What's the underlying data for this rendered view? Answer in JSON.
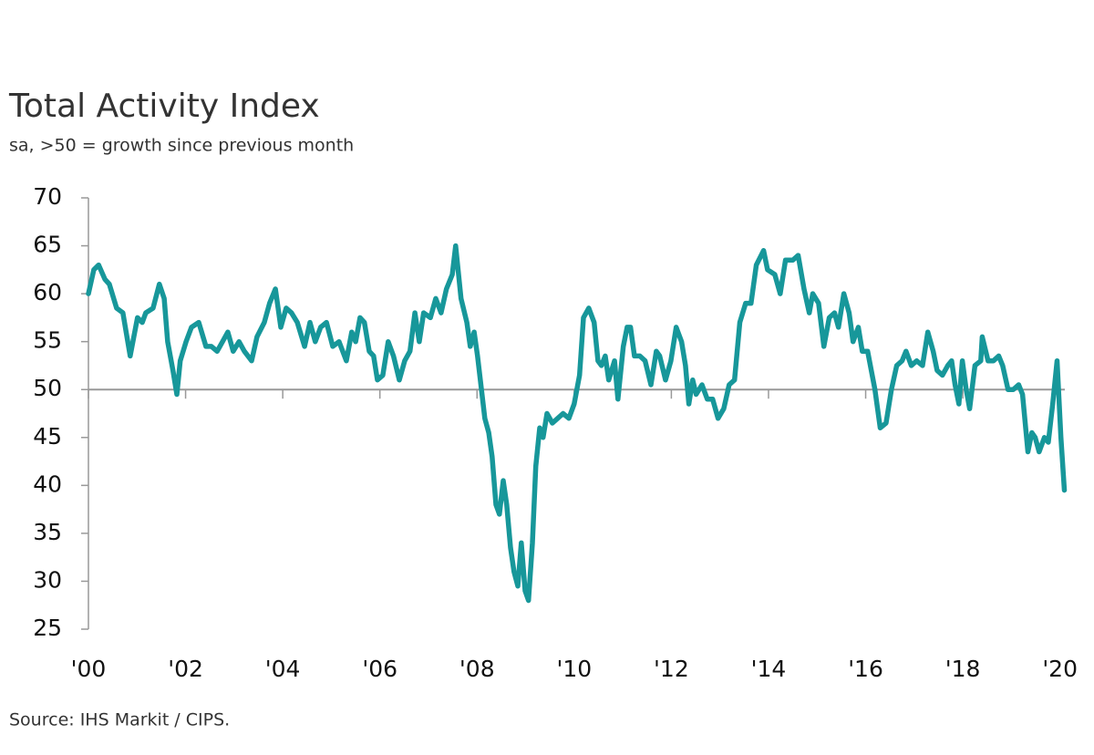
{
  "chart_data": {
    "type": "line",
    "title": "Total Activity Index",
    "subtitle": "sa, >50 = growth since previous month",
    "source": "Source: IHS Markit / CIPS.",
    "reference_line": 50,
    "xlim": [
      2000,
      2020.1
    ],
    "xticks": [
      {
        "value": 2000,
        "label": "'00"
      },
      {
        "value": 2002,
        "label": "'02"
      },
      {
        "value": 2004,
        "label": "'04"
      },
      {
        "value": 2006,
        "label": "'06"
      },
      {
        "value": 2008,
        "label": "'08"
      },
      {
        "value": 2010,
        "label": "'10"
      },
      {
        "value": 2012,
        "label": "'12"
      },
      {
        "value": 2014,
        "label": "'14"
      },
      {
        "value": 2016,
        "label": "'16"
      },
      {
        "value": 2018,
        "label": "'18"
      },
      {
        "value": 2020,
        "label": "'20"
      }
    ],
    "ylim": [
      25,
      70
    ],
    "yticks": [
      25,
      30,
      35,
      40,
      45,
      50,
      55,
      60,
      65,
      70
    ],
    "x": [
      2000.0,
      2000.11,
      2000.21,
      2000.34,
      2000.43,
      2000.58,
      2000.71,
      2000.86,
      2001.01,
      2001.11,
      2001.18,
      2001.33,
      2001.46,
      2001.56,
      2001.63,
      2001.74,
      2001.82,
      2001.89,
      2002.01,
      2002.12,
      2002.27,
      2002.42,
      2002.53,
      2002.65,
      2002.76,
      2002.87,
      2002.98,
      2003.1,
      2003.21,
      2003.36,
      2003.47,
      2003.62,
      2003.73,
      2003.85,
      2003.96,
      2004.07,
      2004.18,
      2004.3,
      2004.45,
      2004.56,
      2004.67,
      2004.78,
      2004.9,
      2005.03,
      2005.16,
      2005.31,
      2005.42,
      2005.5,
      2005.59,
      2005.68,
      2005.78,
      2005.87,
      2005.95,
      2006.06,
      2006.17,
      2006.28,
      2006.4,
      2006.51,
      2006.62,
      2006.72,
      2006.81,
      2006.9,
      2007.04,
      2007.15,
      2007.26,
      2007.37,
      2007.49,
      2007.56,
      2007.67,
      2007.79,
      2007.86,
      2007.94,
      2008.01,
      2008.09,
      2008.16,
      2008.24,
      2008.31,
      2008.39,
      2008.46,
      2008.54,
      2008.61,
      2008.69,
      2008.76,
      2008.84,
      2008.91,
      2008.99,
      2009.06,
      2009.14,
      2009.21,
      2009.29,
      2009.36,
      2009.44,
      2009.55,
      2009.66,
      2009.77,
      2009.89,
      2010.0,
      2010.11,
      2010.19,
      2010.3,
      2010.41,
      2010.49,
      2010.56,
      2010.64,
      2010.71,
      2010.83,
      2010.9,
      2011.01,
      2011.09,
      2011.16,
      2011.24,
      2011.35,
      2011.46,
      2011.58,
      2011.69,
      2011.76,
      2011.88,
      2011.99,
      2012.1,
      2012.21,
      2012.29,
      2012.36,
      2012.44,
      2012.51,
      2012.63,
      2012.74,
      2012.85,
      2012.96,
      2013.08,
      2013.19,
      2013.3,
      2013.41,
      2013.53,
      2013.64,
      2013.75,
      2013.9,
      2013.98,
      2014.13,
      2014.24,
      2014.35,
      2014.5,
      2014.61,
      2014.73,
      2014.84,
      2014.91,
      2015.03,
      2015.14,
      2015.25,
      2015.36,
      2015.44,
      2015.55,
      2015.66,
      2015.74,
      2015.85,
      2015.93,
      2016.04,
      2016.19,
      2016.3,
      2016.42,
      2016.53,
      2016.64,
      2016.75,
      2016.83,
      2016.94,
      2017.05,
      2017.17,
      2017.28,
      2017.39,
      2017.47,
      2017.58,
      2017.69,
      2017.77,
      2017.84,
      2017.92,
      2017.99,
      2018.07,
      2018.14,
      2018.25,
      2018.37,
      2018.4,
      2018.52,
      2018.63,
      2018.74,
      2018.82,
      2018.93,
      2019.04,
      2019.15,
      2019.23,
      2019.34,
      2019.42,
      2019.49,
      2019.57,
      2019.68,
      2019.76,
      2019.85,
      2019.94,
      2020.02,
      2020.09
    ],
    "series": [
      {
        "name": "Total Activity Index",
        "color": "#17979a",
        "values": [
          60,
          62.5,
          63,
          61.5,
          61,
          58.5,
          58,
          53.5,
          57.5,
          57,
          58,
          58.5,
          61,
          59.5,
          55,
          52,
          49.5,
          53,
          55,
          56.5,
          57,
          54.5,
          54.5,
          54,
          55,
          56,
          54,
          55,
          54,
          53,
          55.5,
          57,
          59,
          60.5,
          56.5,
          58.5,
          58,
          57,
          54.5,
          57,
          55,
          56.5,
          57,
          54.5,
          55,
          53,
          56,
          55,
          57.5,
          57,
          54,
          53.5,
          51,
          51.5,
          55,
          53.5,
          51,
          53,
          54,
          58,
          55,
          58,
          57.5,
          59.5,
          58,
          60.5,
          62,
          65,
          59.5,
          57,
          54.5,
          56,
          53.5,
          50,
          47,
          45.5,
          43,
          38,
          37,
          40.5,
          38,
          33.5,
          31,
          29.5,
          34,
          29,
          28,
          34,
          42,
          46,
          45,
          47.5,
          46.5,
          47,
          47.5,
          47,
          48.5,
          51.5,
          57.5,
          58.5,
          57,
          53,
          52.5,
          53.5,
          51,
          53,
          49,
          54.5,
          56.5,
          56.5,
          53.5,
          53.5,
          53,
          50.5,
          54,
          53.5,
          51,
          53,
          56.5,
          55,
          52.5,
          48.5,
          51,
          49.5,
          50.5,
          49,
          49,
          47,
          48,
          50.5,
          51,
          57,
          59,
          59,
          63,
          64.5,
          62.5,
          62,
          60,
          63.5,
          63.5,
          64,
          60.5,
          58,
          60,
          59,
          54.5,
          57.5,
          58,
          56.5,
          60,
          58,
          55,
          56.5,
          54,
          54,
          50,
          46,
          46.5,
          50,
          52.5,
          53,
          54,
          52.5,
          53,
          52.5,
          56,
          54,
          52,
          51.5,
          52.5,
          53,
          50.5,
          48.5,
          53,
          50,
          48,
          52.5,
          53,
          55.5,
          53,
          53,
          53.5,
          52.5,
          50,
          50,
          50.5,
          49.5,
          43.5,
          45.5,
          45,
          43.5,
          45,
          44.5,
          48.5,
          53,
          45,
          39.5
        ]
      }
    ]
  }
}
